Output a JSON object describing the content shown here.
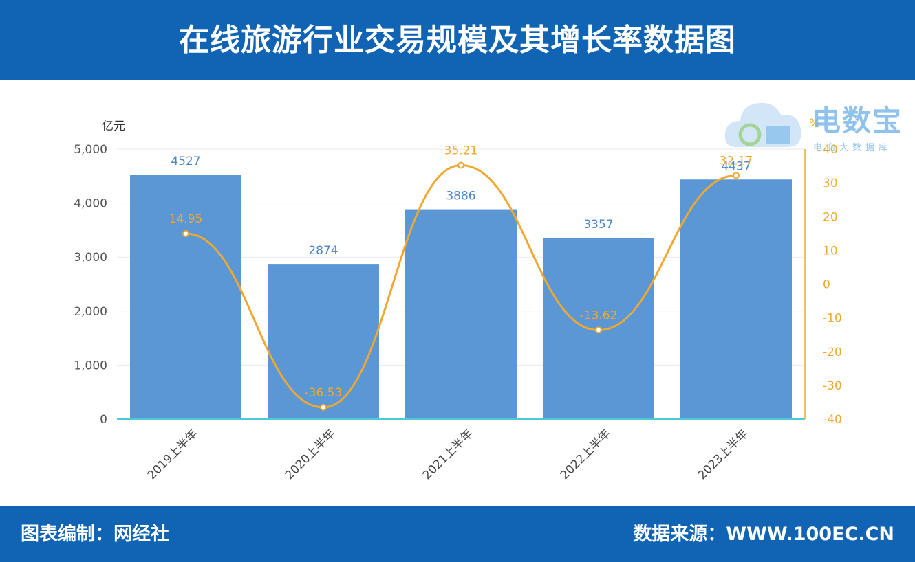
{
  "header": {
    "title": "在线旅游行业交易规模及其增长率数据图"
  },
  "footer": {
    "compiler": "图表编制：网经社",
    "source": "数据来源：WWW.100EC.CN"
  },
  "watermark": {
    "brand": "电数宝",
    "sub": "电商大数据库"
  },
  "colors": {
    "bar": "#5a97d4",
    "line": "#f0a830",
    "header": "#1164b4",
    "baseline": "#4fc9d8"
  },
  "chart_data": {
    "type": "bar",
    "categories": [
      "2019上半年",
      "2020上半年",
      "2021上半年",
      "2022上半年",
      "2023上半年"
    ],
    "series": [
      {
        "values": [
          4527,
          2874,
          3886,
          3357,
          4437
        ],
        "axis": "left",
        "type": "bar"
      },
      {
        "values": [
          14.95,
          -36.53,
          35.21,
          -13.62,
          32.17
        ],
        "axis": "right",
        "type": "line"
      }
    ],
    "ylabel": "亿元",
    "ylabel_right": "%",
    "ylim": [
      0,
      5000
    ],
    "ylim_right": [
      -40,
      40
    ],
    "yticks": [
      "0",
      "1,000",
      "2,000",
      "3,000",
      "4,000",
      "5,000"
    ],
    "yticks_right": [
      "-40",
      "-30",
      "-20",
      "-10",
      "0",
      "10",
      "20",
      "30",
      "40"
    ],
    "bar_labels": [
      "4527",
      "2874",
      "3886",
      "3357",
      "4437"
    ],
    "line_labels": [
      "14.95",
      "-36.53",
      "35.21",
      "-13.62",
      "32.17"
    ],
    "grid": true
  }
}
